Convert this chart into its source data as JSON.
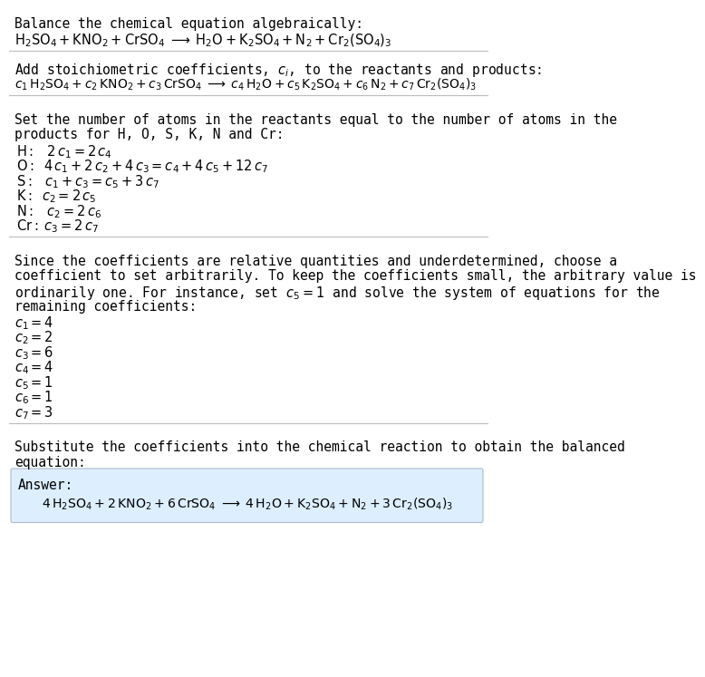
{
  "title_line": "Balance the chemical equation algebraically:",
  "eq1": "$\\mathrm{H_2SO_4 + KNO_2 + CrSO_4} \\;\\longrightarrow\\; \\mathrm{H_2O + K_2SO_4 + N_2 + Cr_2(SO_4)_3}$",
  "section2_title": "Add stoichiometric coefficients, $c_i$, to the reactants and products:",
  "eq2": "$c_1\\, \\mathrm{H_2SO_4} + c_2\\, \\mathrm{KNO_2} + c_3\\, \\mathrm{CrSO_4} \\;\\longrightarrow\\; c_4\\, \\mathrm{H_2O} + c_5\\, \\mathrm{K_2SO_4} + c_6\\, \\mathrm{N_2} + c_7\\, \\mathrm{Cr_2(SO_4)_3}$",
  "section3_line1": "Set the number of atoms in the reactants equal to the number of atoms in the",
  "section3_line2": "products for H, O, S, K, N and Cr:",
  "eq_H": "$\\mathrm{H{:}}\\;\\;\\; 2\\,c_1 = 2\\,c_4$",
  "eq_O": "$\\mathrm{O{:}}\\;\\; 4\\,c_1 + 2\\,c_2 + 4\\,c_3 = c_4 + 4\\,c_5 + 12\\,c_7$",
  "eq_S": "$\\mathrm{S{:}}\\;\\;\\; c_1 + c_3 = c_5 + 3\\,c_7$",
  "eq_K": "$\\mathrm{K{:}}\\;\\; c_2 = 2\\,c_5$",
  "eq_N": "$\\mathrm{N{:}}\\;\\;\\; c_2 = 2\\,c_6$",
  "eq_Cr": "$\\mathrm{Cr{:}}\\; c_3 = 2\\,c_7$",
  "section4_line1": "Since the coefficients are relative quantities and underdetermined, choose a",
  "section4_line2": "coefficient to set arbitrarily. To keep the coefficients small, the arbitrary value is",
  "section4_line3": "ordinarily one. For instance, set $c_5 = 1$ and solve the system of equations for the",
  "section4_line4": "remaining coefficients:",
  "coeff1": "$c_1 = 4$",
  "coeff2": "$c_2 = 2$",
  "coeff3": "$c_3 = 6$",
  "coeff4": "$c_4 = 4$",
  "coeff5": "$c_5 = 1$",
  "coeff6": "$c_6 = 1$",
  "coeff7": "$c_7 = 3$",
  "section5_line1": "Substitute the coefficients into the chemical reaction to obtain the balanced",
  "section5_line2": "equation:",
  "answer_label": "Answer:",
  "answer_eq": "$4\\, \\mathrm{H_2SO_4} + 2\\, \\mathrm{KNO_2} + 6\\, \\mathrm{CrSO_4} \\;\\longrightarrow\\; 4\\, \\mathrm{H_2O} + \\mathrm{K_2SO_4} + \\mathrm{N_2} + 3\\, \\mathrm{Cr_2(SO_4)_3}$",
  "bg_color": "#ffffff",
  "answer_box_color": "#ddeeff",
  "answer_box_edge": "#aabbcc",
  "line_color": "#bbbbbb",
  "text_color": "#000000",
  "font_size": 10.5
}
